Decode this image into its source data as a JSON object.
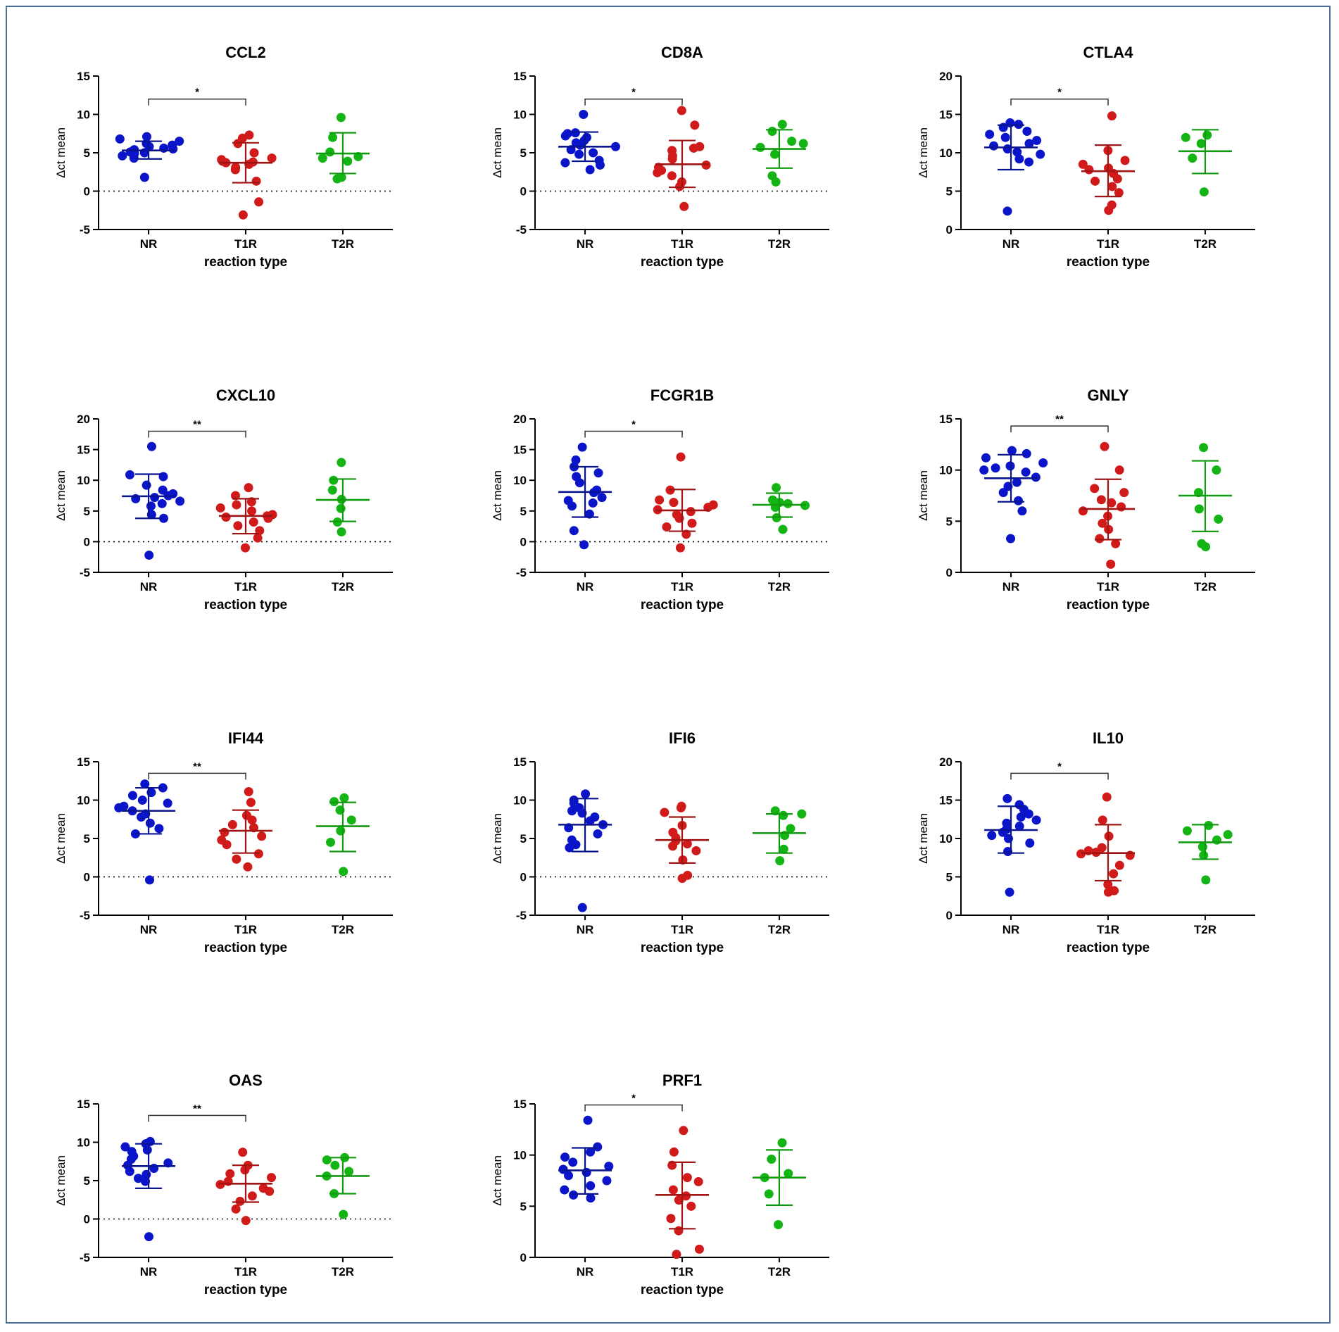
{
  "figure": {
    "y_label": "Δct mean",
    "x_label": "reaction type",
    "group_colors": {
      "NR": "#0a14c8",
      "T1R": "#d11a1a",
      "T2R": "#14b414"
    },
    "error_colors": {
      "NR": "#0a1490",
      "T1R": "#a01414",
      "T2R": "#109a10"
    }
  },
  "chart_data": [
    {
      "type": "scatter",
      "title": "CCL2",
      "categories": [
        "NR",
        "T1R",
        "T2R"
      ],
      "xlabel": "reaction type",
      "ylabel": "Δct mean",
      "ylim": [
        -5,
        15
      ],
      "yticks": [
        -5,
        0,
        5,
        10,
        15
      ],
      "zero_line": true,
      "significance": {
        "from": "NR",
        "to": "T1R",
        "label": "*",
        "y": 12
      },
      "series": [
        {
          "name": "NR",
          "mean": 5.3,
          "sd_low": 4.2,
          "sd_high": 6.5,
          "points": [
            1.8,
            4.3,
            4.6,
            4.9,
            5.0,
            5.1,
            5.2,
            5.4,
            5.5,
            5.6,
            5.8,
            6.0,
            6.2,
            6.5,
            6.8,
            7.1
          ]
        },
        {
          "name": "T1R",
          "mean": 3.7,
          "sd_low": 1.1,
          "sd_high": 6.3,
          "points": [
            -3.1,
            -1.4,
            1.3,
            2.8,
            3.1,
            3.5,
            3.7,
            3.8,
            3.9,
            4.1,
            4.3,
            5.0,
            6.2,
            6.9,
            7.3
          ]
        },
        {
          "name": "T2R",
          "mean": 4.9,
          "sd_low": 2.3,
          "sd_high": 7.6,
          "points": [
            1.6,
            1.8,
            3.9,
            4.3,
            4.5,
            5.1,
            7.0,
            9.6
          ]
        }
      ]
    },
    {
      "type": "scatter",
      "title": "CD8A",
      "categories": [
        "NR",
        "T1R",
        "T2R"
      ],
      "xlabel": "reaction type",
      "ylabel": "Δct mean",
      "ylim": [
        -5,
        15
      ],
      "yticks": [
        -5,
        0,
        5,
        10,
        15
      ],
      "zero_line": true,
      "significance": {
        "from": "NR",
        "to": "T1R",
        "label": "*",
        "y": 12
      },
      "series": [
        {
          "name": "NR",
          "mean": 5.8,
          "sd_low": 3.9,
          "sd_high": 7.7,
          "points": [
            2.8,
            3.4,
            3.7,
            4.0,
            4.8,
            5.0,
            5.4,
            5.8,
            6.0,
            6.3,
            6.6,
            7.0,
            7.2,
            7.5,
            7.6,
            10.0
          ]
        },
        {
          "name": "T1R",
          "mean": 3.5,
          "sd_low": 0.5,
          "sd_high": 6.6,
          "points": [
            -2.0,
            0.6,
            1.2,
            2.0,
            2.4,
            2.7,
            3.1,
            3.4,
            4.2,
            4.6,
            5.3,
            5.6,
            5.8,
            8.6,
            10.5
          ]
        },
        {
          "name": "T2R",
          "mean": 5.5,
          "sd_low": 3.0,
          "sd_high": 8.0,
          "points": [
            1.2,
            2.0,
            4.8,
            5.7,
            6.2,
            6.5,
            7.8,
            8.7
          ]
        }
      ]
    },
    {
      "type": "scatter",
      "title": "CTLA4",
      "categories": [
        "NR",
        "T1R",
        "T2R"
      ],
      "xlabel": "reaction type",
      "ylabel": "Δct mean",
      "ylim": [
        0,
        20
      ],
      "yticks": [
        0,
        5,
        10,
        15,
        20
      ],
      "zero_line": false,
      "significance": {
        "from": "NR",
        "to": "T1R",
        "label": "*",
        "y": 17
      },
      "series": [
        {
          "name": "NR",
          "mean": 10.7,
          "sd_low": 7.8,
          "sd_high": 13.6,
          "points": [
            2.4,
            8.8,
            9.2,
            9.8,
            10.1,
            10.5,
            10.9,
            11.2,
            11.6,
            12.0,
            12.4,
            12.8,
            13.3,
            13.7,
            13.9
          ]
        },
        {
          "name": "T1R",
          "mean": 7.6,
          "sd_low": 4.3,
          "sd_high": 11.0,
          "points": [
            2.5,
            3.2,
            4.8,
            5.6,
            6.3,
            6.6,
            7.3,
            7.8,
            8.0,
            8.5,
            9.0,
            10.3,
            14.8
          ]
        },
        {
          "name": "T2R",
          "mean": 10.2,
          "sd_low": 7.3,
          "sd_high": 13.0,
          "points": [
            4.9,
            9.3,
            11.2,
            12.0,
            12.3
          ]
        }
      ]
    },
    {
      "type": "scatter",
      "title": "CXCL10",
      "categories": [
        "NR",
        "T1R",
        "T2R"
      ],
      "xlabel": "reaction type",
      "ylabel": "Δct mean",
      "ylim": [
        -5,
        20
      ],
      "yticks": [
        -5,
        0,
        5,
        10,
        15,
        20
      ],
      "zero_line": true,
      "significance": {
        "from": "NR",
        "to": "T1R",
        "label": "**",
        "y": 18
      },
      "series": [
        {
          "name": "NR",
          "mean": 7.4,
          "sd_low": 3.8,
          "sd_high": 11.0,
          "points": [
            -2.2,
            3.8,
            4.4,
            5.8,
            6.2,
            6.6,
            7.0,
            7.2,
            7.5,
            7.8,
            8.4,
            9.2,
            10.6,
            10.9,
            15.5
          ]
        },
        {
          "name": "T1R",
          "mean": 4.2,
          "sd_low": 1.3,
          "sd_high": 7.0,
          "points": [
            -1.0,
            0.6,
            1.8,
            2.6,
            3.2,
            3.8,
            4.0,
            4.2,
            4.4,
            5.0,
            5.5,
            6.0,
            6.5,
            7.5,
            8.8
          ]
        },
        {
          "name": "T2R",
          "mean": 6.8,
          "sd_low": 3.3,
          "sd_high": 10.2,
          "points": [
            1.6,
            3.2,
            5.4,
            6.9,
            8.4,
            10.0,
            12.9
          ]
        }
      ]
    },
    {
      "type": "scatter",
      "title": "FCGR1B",
      "categories": [
        "NR",
        "T1R",
        "T2R"
      ],
      "xlabel": "reaction type",
      "ylabel": "Δct mean",
      "ylim": [
        -5,
        20
      ],
      "yticks": [
        -5,
        0,
        5,
        10,
        15,
        20
      ],
      "zero_line": true,
      "significance": {
        "from": "NR",
        "to": "T1R",
        "label": "*",
        "y": 18
      },
      "series": [
        {
          "name": "NR",
          "mean": 8.1,
          "sd_low": 4.0,
          "sd_high": 12.2,
          "points": [
            -0.5,
            1.8,
            4.5,
            5.8,
            6.3,
            6.7,
            7.2,
            8.0,
            8.4,
            9.6,
            10.6,
            11.2,
            12.2,
            13.3,
            15.4
          ]
        },
        {
          "name": "T1R",
          "mean": 5.1,
          "sd_low": 1.7,
          "sd_high": 8.5,
          "points": [
            -1.0,
            1.2,
            2.4,
            3.0,
            3.8,
            4.4,
            4.9,
            5.2,
            5.6,
            6.0,
            6.4,
            6.8,
            8.4,
            13.8
          ]
        },
        {
          "name": "T2R",
          "mean": 6.0,
          "sd_low": 4.0,
          "sd_high": 7.9,
          "points": [
            2.0,
            3.9,
            5.6,
            5.9,
            6.2,
            6.4,
            6.8,
            8.8
          ]
        }
      ]
    },
    {
      "type": "scatter",
      "title": "GNLY",
      "categories": [
        "NR",
        "T1R",
        "T2R"
      ],
      "xlabel": "reaction type",
      "ylabel": "Δct mean",
      "ylim": [
        0,
        15
      ],
      "yticks": [
        0,
        5,
        10,
        15
      ],
      "zero_line": false,
      "significance": {
        "from": "NR",
        "to": "T1R",
        "label": "**",
        "y": 14.3
      },
      "series": [
        {
          "name": "NR",
          "mean": 9.2,
          "sd_low": 6.9,
          "sd_high": 11.5,
          "points": [
            3.3,
            6.0,
            7.0,
            7.8,
            8.4,
            8.8,
            9.3,
            9.8,
            10.0,
            10.2,
            10.4,
            10.7,
            11.2,
            11.6,
            11.9
          ]
        },
        {
          "name": "T1R",
          "mean": 6.2,
          "sd_low": 3.2,
          "sd_high": 9.1,
          "points": [
            0.8,
            2.8,
            3.3,
            4.2,
            4.8,
            5.5,
            6.0,
            6.4,
            6.8,
            7.1,
            7.8,
            8.2,
            10.0,
            12.3
          ]
        },
        {
          "name": "T2R",
          "mean": 7.5,
          "sd_low": 4.0,
          "sd_high": 10.9,
          "points": [
            2.5,
            2.8,
            5.2,
            6.2,
            7.8,
            10.0,
            12.2
          ]
        }
      ]
    },
    {
      "type": "scatter",
      "title": "IFI44",
      "categories": [
        "NR",
        "T1R",
        "T2R"
      ],
      "xlabel": "reaction type",
      "ylabel": "Δct mean",
      "ylim": [
        -5,
        15
      ],
      "yticks": [
        -5,
        0,
        5,
        10,
        15
      ],
      "zero_line": true,
      "significance": {
        "from": "NR",
        "to": "T1R",
        "label": "**",
        "y": 13.5
      },
      "series": [
        {
          "name": "NR",
          "mean": 8.6,
          "sd_low": 5.6,
          "sd_high": 11.6,
          "points": [
            -0.4,
            5.6,
            6.3,
            7.0,
            7.8,
            8.2,
            8.6,
            9.0,
            9.2,
            9.6,
            10.0,
            10.6,
            11.0,
            11.6,
            12.1
          ]
        },
        {
          "name": "T1R",
          "mean": 6.0,
          "sd_low": 3.1,
          "sd_high": 8.7,
          "points": [
            1.3,
            2.3,
            3.0,
            4.2,
            4.8,
            5.3,
            5.8,
            6.4,
            6.8,
            7.4,
            8.0,
            9.7,
            11.1
          ]
        },
        {
          "name": "T2R",
          "mean": 6.6,
          "sd_low": 3.3,
          "sd_high": 9.7,
          "points": [
            0.7,
            4.5,
            6.0,
            7.4,
            8.7,
            9.8,
            10.3
          ]
        }
      ]
    },
    {
      "type": "scatter",
      "title": "IFI6",
      "categories": [
        "NR",
        "T1R",
        "T2R"
      ],
      "xlabel": "reaction type",
      "ylabel": "Δct mean",
      "ylim": [
        -5,
        15
      ],
      "yticks": [
        -5,
        0,
        5,
        10,
        15
      ],
      "zero_line": true,
      "significance": null,
      "series": [
        {
          "name": "NR",
          "mean": 6.8,
          "sd_low": 3.3,
          "sd_high": 10.2,
          "points": [
            -4.0,
            3.8,
            4.2,
            4.8,
            5.6,
            6.4,
            6.8,
            7.3,
            7.8,
            8.3,
            8.6,
            9.0,
            9.6,
            10.0,
            10.8
          ]
        },
        {
          "name": "T1R",
          "mean": 4.8,
          "sd_low": 1.8,
          "sd_high": 7.8,
          "points": [
            -0.2,
            0.2,
            2.2,
            3.4,
            4.0,
            4.3,
            4.7,
            5.1,
            5.8,
            6.7,
            8.4,
            9.0,
            9.2
          ]
        },
        {
          "name": "T2R",
          "mean": 5.7,
          "sd_low": 3.1,
          "sd_high": 8.2,
          "points": [
            2.1,
            3.6,
            5.4,
            6.3,
            8.0,
            8.2,
            8.6
          ]
        }
      ]
    },
    {
      "type": "scatter",
      "title": "IL10",
      "categories": [
        "NR",
        "T1R",
        "T2R"
      ],
      "xlabel": "reaction type",
      "ylabel": "Δct mean",
      "ylim": [
        0,
        20
      ],
      "yticks": [
        0,
        5,
        10,
        15,
        20
      ],
      "zero_line": false,
      "significance": {
        "from": "NR",
        "to": "T1R",
        "label": "*",
        "y": 18.5
      },
      "series": [
        {
          "name": "NR",
          "mean": 11.1,
          "sd_low": 8.1,
          "sd_high": 14.2,
          "points": [
            3.0,
            8.3,
            9.4,
            10.0,
            10.4,
            10.8,
            11.2,
            11.6,
            12.0,
            12.4,
            12.8,
            13.2,
            13.8,
            14.4,
            15.2
          ]
        },
        {
          "name": "T1R",
          "mean": 8.1,
          "sd_low": 4.5,
          "sd_high": 11.8,
          "points": [
            3.0,
            3.2,
            4.0,
            5.4,
            6.5,
            7.8,
            8.0,
            8.2,
            8.4,
            8.8,
            10.3,
            12.4,
            15.4
          ]
        },
        {
          "name": "T2R",
          "mean": 9.5,
          "sd_low": 7.3,
          "sd_high": 11.8,
          "points": [
            4.6,
            7.8,
            8.9,
            9.8,
            10.5,
            11.0,
            11.7
          ]
        }
      ]
    },
    {
      "type": "scatter",
      "title": "OAS",
      "categories": [
        "NR",
        "T1R",
        "T2R"
      ],
      "xlabel": "reaction type",
      "ylabel": "Δct mean",
      "ylim": [
        -5,
        15
      ],
      "yticks": [
        -5,
        0,
        5,
        10,
        15
      ],
      "zero_line": true,
      "significance": {
        "from": "NR",
        "to": "T1R",
        "label": "**",
        "y": 13.5
      },
      "series": [
        {
          "name": "NR",
          "mean": 6.9,
          "sd_low": 4.0,
          "sd_high": 9.8,
          "points": [
            -2.3,
            4.9,
            5.3,
            5.8,
            6.2,
            6.6,
            7.0,
            7.3,
            7.8,
            8.2,
            8.8,
            9.0,
            9.4,
            9.8,
            10.1
          ]
        },
        {
          "name": "T1R",
          "mean": 4.6,
          "sd_low": 2.2,
          "sd_high": 7.0,
          "points": [
            -0.2,
            1.3,
            2.3,
            3.0,
            3.6,
            4.0,
            4.5,
            4.9,
            5.4,
            5.9,
            6.4,
            7.0,
            8.7
          ]
        },
        {
          "name": "T2R",
          "mean": 5.6,
          "sd_low": 3.3,
          "sd_high": 8.0,
          "points": [
            0.6,
            3.3,
            5.6,
            6.2,
            7.0,
            7.7,
            8.0
          ]
        }
      ]
    },
    {
      "type": "scatter",
      "title": "PRF1",
      "categories": [
        "NR",
        "T1R",
        "T2R"
      ],
      "xlabel": "reaction type",
      "ylabel": "Δct mean",
      "ylim": [
        0,
        15
      ],
      "yticks": [
        0,
        5,
        10,
        15
      ],
      "zero_line": false,
      "significance": {
        "from": "NR",
        "to": "T1R",
        "label": "*",
        "y": 14.9
      },
      "series": [
        {
          "name": "NR",
          "mean": 8.5,
          "sd_low": 6.2,
          "sd_high": 10.7,
          "points": [
            5.8,
            6.1,
            6.6,
            7.0,
            7.5,
            8.0,
            8.3,
            8.6,
            8.9,
            9.3,
            9.8,
            10.3,
            10.8,
            13.4
          ]
        },
        {
          "name": "T1R",
          "mean": 6.1,
          "sd_low": 2.8,
          "sd_high": 9.3,
          "points": [
            0.3,
            0.8,
            2.6,
            3.8,
            5.0,
            5.6,
            6.0,
            6.6,
            7.4,
            7.8,
            9.0,
            10.3,
            12.4
          ]
        },
        {
          "name": "T2R",
          "mean": 7.8,
          "sd_low": 5.1,
          "sd_high": 10.5,
          "points": [
            3.2,
            6.2,
            7.8,
            8.2,
            9.6,
            11.2
          ]
        }
      ]
    }
  ]
}
